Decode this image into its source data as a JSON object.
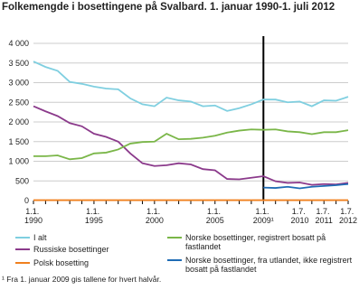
{
  "chart_data": {
    "type": "line",
    "title": "Folkemengde i bosettingene på Svalbard. 1. januar 1990-1. juli 2012",
    "categories": [
      "1.1. 1990",
      null,
      null,
      null,
      null,
      "1.1. 1995",
      null,
      null,
      null,
      null,
      "1.1. 2000",
      null,
      null,
      null,
      null,
      "1.1. 2005",
      null,
      null,
      null,
      "1.1. 2009¹",
      null,
      null,
      "1.7. 2010",
      null,
      "1.7. 2011",
      null,
      "1.7. 2012"
    ],
    "series": [
      {
        "name": "I alt",
        "color": "#7fcfe0",
        "values": [
          3540,
          3400,
          3300,
          3020,
          2970,
          2900,
          2850,
          2830,
          2600,
          2450,
          2400,
          2620,
          2550,
          2520,
          2400,
          2420,
          2280,
          2350,
          2450,
          2570,
          2570,
          2500,
          2520,
          2400,
          2550,
          2540,
          2640
        ]
      },
      {
        "name": "Russiske bosettinger",
        "color": "#8b3a8b",
        "values": [
          2400,
          2270,
          2150,
          1970,
          1890,
          1700,
          1620,
          1500,
          1200,
          950,
          880,
          900,
          950,
          920,
          800,
          770,
          550,
          540,
          580,
          620,
          490,
          450,
          460,
          400,
          420,
          410,
          450
        ]
      },
      {
        "name": "Polsk bosetting",
        "color": "#f0801e",
        "values": [
          10,
          10,
          10,
          10,
          10,
          10,
          10,
          10,
          10,
          10,
          10,
          10,
          10,
          10,
          10,
          10,
          10,
          10,
          10,
          10,
          10,
          10,
          10,
          10,
          10,
          10,
          10
        ]
      },
      {
        "name": "Norske bosettinger, registrert bosatt på fastlandet",
        "color": "#7ab648",
        "values": [
          1130,
          1130,
          1150,
          1050,
          1080,
          1200,
          1220,
          1300,
          1450,
          1490,
          1500,
          1700,
          1560,
          1570,
          1600,
          1650,
          1730,
          1780,
          1810,
          1800,
          1810,
          1760,
          1740,
          1690,
          1740,
          1740,
          1790
        ]
      },
      {
        "name": "Norske bosettinger, fra utlandet, ikke registrert bosatt på fastlandet",
        "color": "#1f6cb5",
        "values": [
          null,
          null,
          null,
          null,
          null,
          null,
          null,
          null,
          null,
          null,
          null,
          null,
          null,
          null,
          null,
          null,
          null,
          null,
          null,
          330,
          320,
          350,
          310,
          350,
          370,
          390,
          420
        ]
      }
    ],
    "ylim": [
      0,
      4000
    ],
    "yticks": [
      0,
      500,
      {
        "value": 1000,
        "label": "1 000"
      },
      {
        "value": 1500,
        "label": "1 500"
      },
      {
        "value": 2000,
        "label": "2 000"
      },
      {
        "value": 2500,
        "label": "2 500"
      },
      {
        "value": 3000,
        "label": "3 000"
      },
      {
        "value": 3500,
        "label": "3 500"
      },
      {
        "value": 4000,
        "label": "4 000"
      }
    ],
    "grid": true,
    "footnote": "¹ Fra 1. januar 2009 gis tallene for hvert halvår."
  }
}
